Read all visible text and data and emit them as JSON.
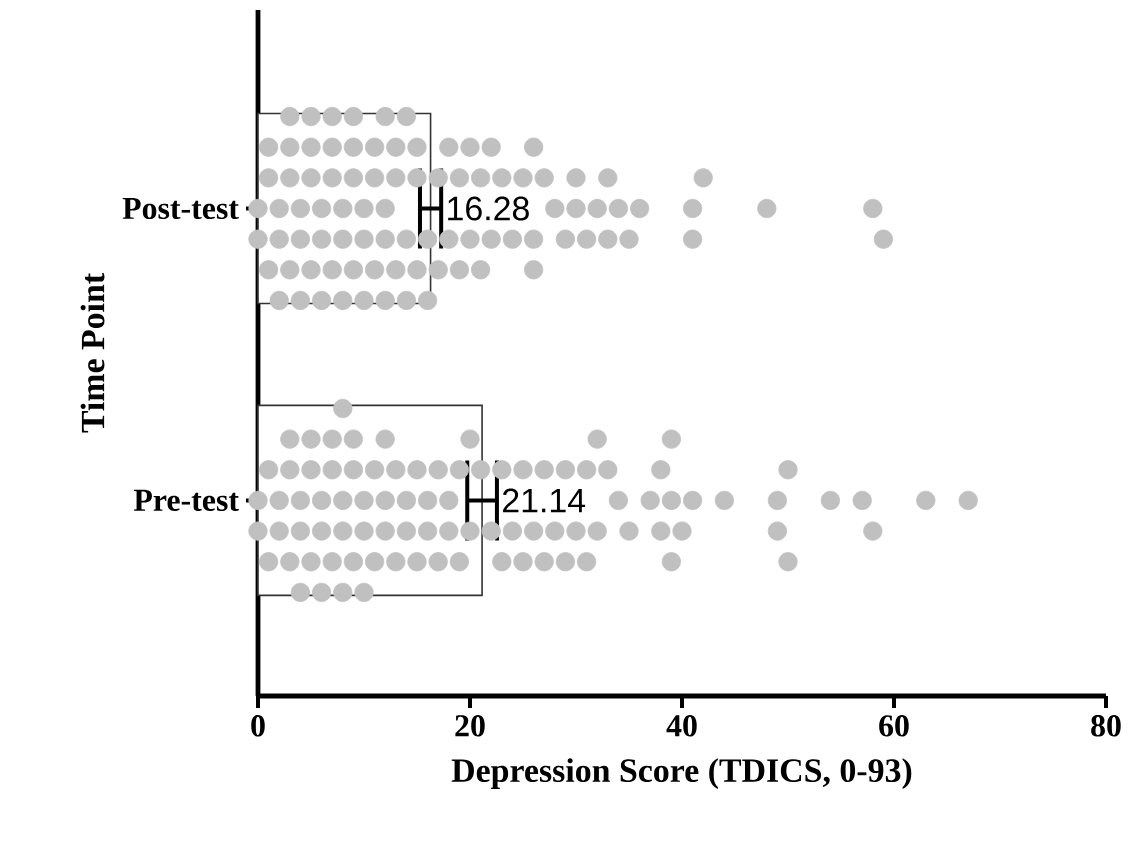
{
  "chart_data": {
    "type": "bar",
    "orientation": "horizontal",
    "categories": [
      "Post-test",
      "Pre-test"
    ],
    "xlabel": "Depression Score (TDICS, 0-93)",
    "ylabel": "Time Point",
    "xlim": [
      0,
      80
    ],
    "xticks": [
      0,
      20,
      40,
      60,
      80
    ],
    "series": [
      {
        "color": "#ffffff",
        "values": [
          16.28,
          21.14
        ],
        "errors": [
          1.0,
          1.4
        ],
        "value_labels": [
          "16.28",
          "21.14"
        ]
      },
      {
        "type": "scatter",
        "marker": "circle",
        "color": "#c0c0c0",
        "x": [
          "Post-test",
          "Post-test",
          "Post-test",
          "Post-test",
          "Post-test",
          "Post-test",
          "Post-test",
          "Post-test",
          "Post-test",
          "Post-test",
          "Post-test",
          "Post-test",
          "Post-test",
          "Post-test",
          "Post-test",
          "Post-test",
          "Post-test",
          "Post-test",
          "Post-test",
          "Post-test",
          "Post-test",
          "Post-test",
          "Post-test",
          "Post-test",
          "Post-test",
          "Post-test",
          "Post-test",
          "Post-test",
          "Post-test",
          "Post-test",
          "Post-test",
          "Post-test",
          "Post-test",
          "Post-test",
          "Post-test",
          "Post-test",
          "Post-test",
          "Post-test",
          "Post-test",
          "Post-test",
          "Post-test",
          "Post-test",
          "Post-test",
          "Post-test",
          "Post-test",
          "Post-test",
          "Post-test",
          "Post-test",
          "Post-test",
          "Post-test",
          "Post-test",
          "Post-test",
          "Post-test",
          "Post-test",
          "Post-test",
          "Post-test",
          "Post-test",
          "Post-test",
          "Post-test",
          "Post-test",
          "Post-test",
          "Post-test",
          "Post-test",
          "Post-test",
          "Post-test",
          "Post-test",
          "Post-test",
          "Post-test",
          "Post-test",
          "Post-test",
          "Post-test",
          "Post-test",
          "Post-test",
          "Post-test",
          "Post-test",
          "Post-test",
          "Post-test",
          "Post-test",
          "Post-test",
          "Post-test",
          "Post-test",
          "Post-test",
          "Post-test",
          "Post-test",
          "Post-test",
          "Post-test",
          "Post-test",
          "Post-test",
          "Post-test",
          "Post-test",
          "Pre-test",
          "Pre-test",
          "Pre-test",
          "Pre-test",
          "Pre-test",
          "Pre-test",
          "Pre-test",
          "Pre-test",
          "Pre-test",
          "Pre-test",
          "Pre-test",
          "Pre-test",
          "Pre-test",
          "Pre-test",
          "Pre-test",
          "Pre-test",
          "Pre-test",
          "Pre-test",
          "Pre-test",
          "Pre-test",
          "Pre-test",
          "Pre-test",
          "Pre-test",
          "Pre-test",
          "Pre-test",
          "Pre-test",
          "Pre-test",
          "Pre-test",
          "Pre-test",
          "Pre-test",
          "Pre-test",
          "Pre-test",
          "Pre-test",
          "Pre-test",
          "Pre-test",
          "Pre-test",
          "Pre-test",
          "Pre-test",
          "Pre-test",
          "Pre-test",
          "Pre-test",
          "Pre-test",
          "Pre-test",
          "Pre-test",
          "Pre-test",
          "Pre-test",
          "Pre-test",
          "Pre-test",
          "Pre-test",
          "Pre-test",
          "Pre-test",
          "Pre-test",
          "Pre-test",
          "Pre-test",
          "Pre-test",
          "Pre-test",
          "Pre-test",
          "Pre-test",
          "Pre-test",
          "Pre-test",
          "Pre-test",
          "Pre-test",
          "Pre-test",
          "Pre-test",
          "Pre-test",
          "Pre-test",
          "Pre-test",
          "Pre-test",
          "Pre-test",
          "Pre-test",
          "Pre-test",
          "Pre-test",
          "Pre-test",
          "Pre-test",
          "Pre-test",
          "Pre-test",
          "Pre-test",
          "Pre-test",
          "Pre-test",
          "Pre-test",
          "Pre-test",
          "Pre-test",
          "Pre-test",
          "Pre-test",
          "Pre-test",
          "Pre-test",
          "Pre-test",
          "Pre-test",
          "Pre-test",
          "Pre-test",
          "Pre-test"
        ],
        "values": [
          0,
          0,
          1,
          1,
          1,
          2,
          2,
          2,
          3,
          3,
          3,
          3,
          4,
          4,
          4,
          5,
          5,
          5,
          5,
          6,
          6,
          6,
          7,
          7,
          7,
          7,
          8,
          8,
          8,
          9,
          9,
          9,
          9,
          10,
          10,
          10,
          11,
          11,
          11,
          12,
          12,
          12,
          12,
          13,
          13,
          13,
          14,
          14,
          14,
          15,
          15,
          15,
          16,
          16,
          17,
          17,
          18,
          18,
          19,
          19,
          20,
          20,
          21,
          21,
          22,
          22,
          23,
          24,
          25,
          26,
          26,
          26,
          27,
          28,
          29,
          30,
          30,
          31,
          32,
          33,
          33,
          34,
          35,
          36,
          41,
          41,
          42,
          48,
          58,
          59,
          0,
          0,
          1,
          1,
          2,
          2,
          3,
          3,
          3,
          4,
          4,
          4,
          5,
          5,
          5,
          6,
          6,
          6,
          7,
          7,
          7,
          8,
          8,
          8,
          8,
          9,
          9,
          9,
          10,
          10,
          10,
          11,
          11,
          12,
          12,
          12,
          13,
          13,
          14,
          14,
          15,
          15,
          16,
          16,
          17,
          17,
          18,
          18,
          19,
          19,
          20,
          20,
          21,
          22,
          23,
          23,
          24,
          25,
          25,
          26,
          27,
          27,
          28,
          29,
          29,
          30,
          31,
          31,
          32,
          32,
          33,
          34,
          35,
          37,
          38,
          38,
          39,
          39,
          39,
          40,
          41,
          44,
          49,
          49,
          50,
          50,
          54,
          57,
          58,
          63,
          67
        ]
      }
    ]
  }
}
